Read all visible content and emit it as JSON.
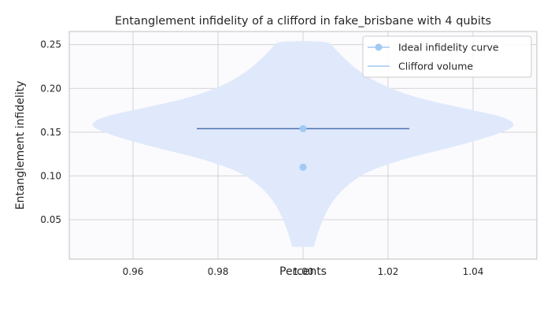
{
  "chart_data": {
    "type": "violin",
    "title": "Entanglement infidelity of a clifford in fake_brisbane with 4 qubits",
    "xlabel": "Percents",
    "ylabel": "Entanglement infidelity",
    "xlim": [
      0.945,
      1.055
    ],
    "ylim": [
      0.005,
      0.265
    ],
    "xticks": [
      0.96,
      0.98,
      1.0,
      1.02,
      1.04
    ],
    "xtick_labels": [
      "0.96",
      "0.98",
      "1.00",
      "1.02",
      "1.04"
    ],
    "yticks": [
      0.05,
      0.1,
      0.15,
      0.2,
      0.25
    ],
    "ytick_labels": [
      "0.05",
      "0.10",
      "0.15",
      "0.20",
      "0.25"
    ],
    "grid": true,
    "legend_position": "top-right",
    "legend": [
      {
        "label": "Ideal infidelity curve",
        "marker": "circle"
      },
      {
        "label": "Clifford volume",
        "marker": "line"
      }
    ],
    "ideal_points": [
      {
        "x": 1.0,
        "y": 0.154
      },
      {
        "x": 1.0,
        "y": 0.11
      }
    ],
    "mean_line": {
      "x_start": 0.975,
      "x_end": 1.025,
      "y": 0.154
    },
    "violin": {
      "center_x": 1.0,
      "profile": [
        {
          "y": 0.019,
          "w": 0.0025
        },
        {
          "y": 0.03,
          "w": 0.0032
        },
        {
          "y": 0.045,
          "w": 0.0042
        },
        {
          "y": 0.06,
          "w": 0.0056
        },
        {
          "y": 0.075,
          "w": 0.0075
        },
        {
          "y": 0.09,
          "w": 0.0105
        },
        {
          "y": 0.105,
          "w": 0.015
        },
        {
          "y": 0.12,
          "w": 0.024
        },
        {
          "y": 0.135,
          "w": 0.037
        },
        {
          "y": 0.148,
          "w": 0.046
        },
        {
          "y": 0.158,
          "w": 0.0505
        },
        {
          "y": 0.168,
          "w": 0.047
        },
        {
          "y": 0.178,
          "w": 0.037
        },
        {
          "y": 0.19,
          "w": 0.026
        },
        {
          "y": 0.205,
          "w": 0.018
        },
        {
          "y": 0.22,
          "w": 0.013
        },
        {
          "y": 0.235,
          "w": 0.0095
        },
        {
          "y": 0.248,
          "w": 0.007
        },
        {
          "y": 0.254,
          "w": 0.006
        }
      ]
    },
    "colors": {
      "violin_fill": "#dfe9fb",
      "plot_bg": "#fbfafd",
      "grid": "#d3d3d3",
      "axes": "#c0c0c0",
      "point": "#a1c9f4",
      "mean_line": "#4c72b0",
      "legend_line": "#a1c9f4"
    }
  }
}
